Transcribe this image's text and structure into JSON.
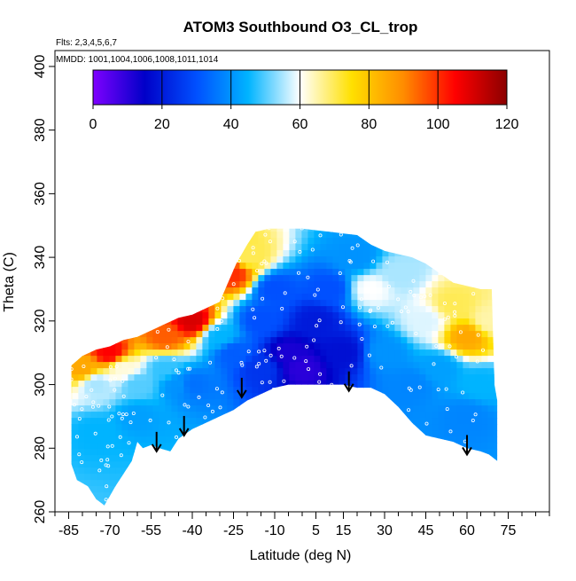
{
  "chart_data": {
    "type": "heatmap",
    "title": "ATOM3 Southbound O3_CL_trop",
    "subtitle_flights": "Flts: 2,3,4,5,6,7",
    "subtitle_dates": "MMDD: 1001,1004,1006,1008,1011,1014",
    "xlabel": "Latitude (deg N)",
    "ylabel": "Theta (C)",
    "xlim": [
      -90,
      90
    ],
    "ylim": [
      260,
      405
    ],
    "x_ticks": [
      -85,
      -70,
      -55,
      -40,
      -25,
      -10,
      5,
      15,
      30,
      45,
      60,
      75
    ],
    "x_tick_labels": [
      "-85",
      "-70",
      "-55",
      "-40",
      "-25",
      "-10",
      "5",
      "15",
      "30",
      "45",
      "60",
      "75"
    ],
    "y_ticks": [
      260,
      280,
      300,
      320,
      340,
      360,
      380,
      400
    ],
    "y_tick_labels": [
      "260",
      "280",
      "300",
      "320",
      "340",
      "360",
      "380",
      "400"
    ],
    "colorbar": {
      "min": 0,
      "max": 120,
      "ticks": [
        0,
        20,
        40,
        60,
        80,
        100,
        120
      ],
      "tick_labels": [
        "0",
        "20",
        "40",
        "60",
        "80",
        "100",
        "120"
      ],
      "colors": [
        "#7f00ff",
        "#0000c8",
        "#0050ff",
        "#00b4ff",
        "#ffffff",
        "#ffe000",
        "#ff8c00",
        "#ff0000",
        "#8b0000"
      ]
    },
    "region": {
      "top_boundary": [
        [
          -84,
          306
        ],
        [
          -80,
          309
        ],
        [
          -75,
          311
        ],
        [
          -70,
          312
        ],
        [
          -65,
          314
        ],
        [
          -60,
          315
        ],
        [
          -55,
          317
        ],
        [
          -50,
          319
        ],
        [
          -45,
          321
        ],
        [
          -40,
          322
        ],
        [
          -35,
          324
        ],
        [
          -30,
          326
        ],
        [
          -27,
          332
        ],
        [
          -24,
          338
        ],
        [
          -20,
          344
        ],
        [
          -17,
          348
        ],
        [
          -12,
          349
        ],
        [
          -5,
          349
        ],
        [
          0,
          349
        ],
        [
          10,
          348
        ],
        [
          20,
          347
        ],
        [
          25,
          344
        ],
        [
          30,
          342
        ],
        [
          40,
          340
        ],
        [
          45,
          338
        ],
        [
          50,
          335
        ],
        [
          55,
          332
        ],
        [
          60,
          331
        ],
        [
          65,
          330
        ],
        [
          69,
          330
        ],
        [
          70,
          300
        ],
        [
          71,
          295
        ]
      ],
      "bottom_boundary": [
        [
          71,
          276
        ],
        [
          68,
          278
        ],
        [
          65,
          279
        ],
        [
          60,
          280
        ],
        [
          55,
          282
        ],
        [
          50,
          283
        ],
        [
          45,
          284
        ],
        [
          40,
          288
        ],
        [
          35,
          293
        ],
        [
          30,
          297
        ],
        [
          25,
          299
        ],
        [
          20,
          299
        ],
        [
          15,
          300
        ],
        [
          10,
          300
        ],
        [
          5,
          300
        ],
        [
          0,
          300
        ],
        [
          -5,
          300
        ],
        [
          -10,
          299
        ],
        [
          -15,
          297
        ],
        [
          -20,
          295
        ],
        [
          -25,
          292
        ],
        [
          -30,
          290
        ],
        [
          -35,
          288
        ],
        [
          -40,
          286
        ],
        [
          -45,
          283
        ],
        [
          -48,
          279
        ],
        [
          -52,
          280
        ],
        [
          -55,
          281
        ],
        [
          -58,
          280
        ],
        [
          -60,
          282
        ],
        [
          -62,
          276
        ],
        [
          -65,
          272
        ],
        [
          -68,
          268
        ],
        [
          -70,
          265
        ],
        [
          -72,
          262
        ],
        [
          -75,
          264
        ],
        [
          -78,
          268
        ],
        [
          -82,
          270
        ],
        [
          -84,
          275
        ]
      ],
      "sample_field": [
        {
          "lat": -80,
          "theta": 305,
          "o3": 85
        },
        {
          "lat": -75,
          "theta": 300,
          "o3": 55
        },
        {
          "lat": -75,
          "theta": 285,
          "o3": 45
        },
        {
          "lat": -70,
          "theta": 310,
          "o3": 105
        },
        {
          "lat": -65,
          "theta": 305,
          "o3": 62
        },
        {
          "lat": -60,
          "theta": 300,
          "o3": 50
        },
        {
          "lat": -60,
          "theta": 290,
          "o3": 42
        },
        {
          "lat": -50,
          "theta": 315,
          "o3": 95
        },
        {
          "lat": -50,
          "theta": 305,
          "o3": 48
        },
        {
          "lat": -45,
          "theta": 300,
          "o3": 40
        },
        {
          "lat": -40,
          "theta": 320,
          "o3": 110
        },
        {
          "lat": -40,
          "theta": 300,
          "o3": 35
        },
        {
          "lat": -30,
          "theta": 315,
          "o3": 45
        },
        {
          "lat": -25,
          "theta": 335,
          "o3": 100
        },
        {
          "lat": -25,
          "theta": 310,
          "o3": 32
        },
        {
          "lat": -20,
          "theta": 340,
          "o3": 70
        },
        {
          "lat": -15,
          "theta": 320,
          "o3": 30
        },
        {
          "lat": -15,
          "theta": 305,
          "o3": 25
        },
        {
          "lat": -10,
          "theta": 330,
          "o3": 30
        },
        {
          "lat": -5,
          "theta": 310,
          "o3": 12
        },
        {
          "lat": 0,
          "theta": 305,
          "o3": 10
        },
        {
          "lat": 5,
          "theta": 320,
          "o3": 20
        },
        {
          "lat": 10,
          "theta": 330,
          "o3": 30
        },
        {
          "lat": 15,
          "theta": 310,
          "o3": 18
        },
        {
          "lat": 20,
          "theta": 340,
          "o3": 40
        },
        {
          "lat": 25,
          "theta": 330,
          "o3": 60
        },
        {
          "lat": 30,
          "theta": 310,
          "o3": 40
        },
        {
          "lat": 35,
          "theta": 335,
          "o3": 55
        },
        {
          "lat": 40,
          "theta": 300,
          "o3": 38
        },
        {
          "lat": 45,
          "theta": 320,
          "o3": 58
        },
        {
          "lat": 50,
          "theta": 305,
          "o3": 42
        },
        {
          "lat": 55,
          "theta": 325,
          "o3": 70
        },
        {
          "lat": 60,
          "theta": 315,
          "o3": 85
        },
        {
          "lat": 60,
          "theta": 290,
          "o3": 38
        },
        {
          "lat": 65,
          "theta": 300,
          "o3": 45
        },
        {
          "lat": 68,
          "theta": 320,
          "o3": 65
        }
      ]
    },
    "arrows": [
      {
        "lat": -53,
        "theta": 279
      },
      {
        "lat": -43,
        "theta": 284
      },
      {
        "lat": -22,
        "theta": 296
      },
      {
        "lat": 17,
        "theta": 298
      },
      {
        "lat": 60,
        "theta": 278
      }
    ]
  }
}
